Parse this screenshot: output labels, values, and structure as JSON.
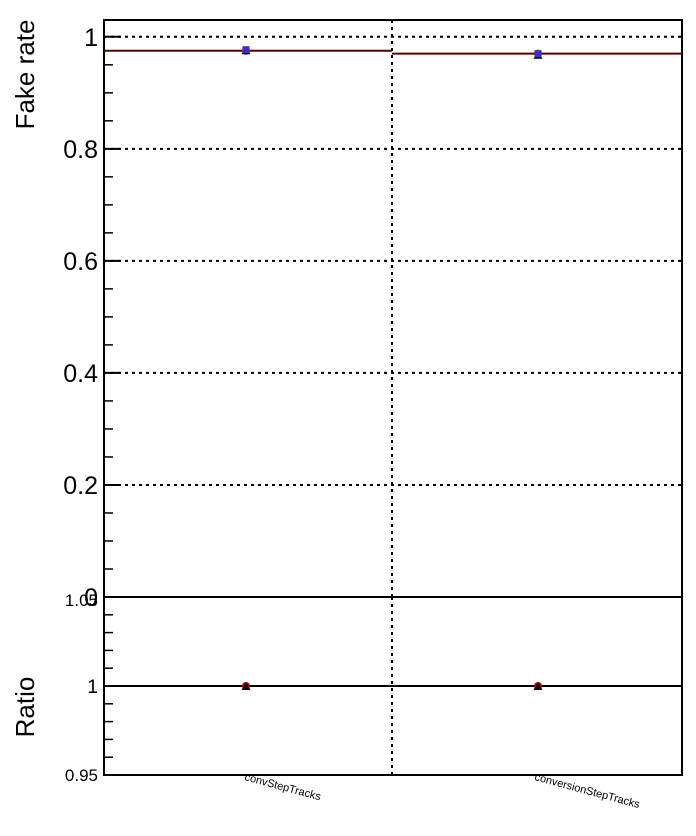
{
  "chart_data": [
    {
      "type": "scatter",
      "panel": "main",
      "ylabel": "Fake rate",
      "xlabel": "",
      "categories": [
        "convStepTracks",
        "conversionStepTracks"
      ],
      "ylim": [
        0,
        1.03
      ],
      "yticks": [
        0,
        0.2,
        0.4,
        0.6,
        0.8,
        1
      ],
      "ytick_labels": [
        "0",
        "0.2",
        "0.4",
        "0.6",
        "0.8",
        "1"
      ],
      "grid": true,
      "series": [
        {
          "values": [
            0.975,
            0.97
          ],
          "color": "#cc0000",
          "marker": "circle"
        },
        {
          "values": [
            0.976,
            0.968
          ],
          "color": "#000000",
          "marker": "triangle"
        },
        {
          "values": [
            0.977,
            0.97
          ],
          "color": "#3333cc",
          "marker": "square"
        }
      ],
      "reference_line": {
        "values": [
          0.975,
          0.97
        ],
        "color": "#550000"
      }
    },
    {
      "type": "scatter",
      "panel": "ratio",
      "ylabel": "Ratio",
      "xlabel": "",
      "categories": [
        "convStepTracks",
        "conversionStepTracks"
      ],
      "ylim": [
        0.95,
        1.05
      ],
      "yticks": [
        0.95,
        1,
        1.05
      ],
      "ytick_labels": [
        "0.95",
        "1",
        "1.05"
      ],
      "grid": true,
      "series": [
        {
          "values": [
            1.0,
            1.0
          ],
          "color": "#cc0000",
          "marker": "circle"
        },
        {
          "values": [
            1.0,
            1.0
          ],
          "color": "#000000",
          "marker": "triangle"
        }
      ],
      "reference_line": {
        "values": [
          1.0,
          1.0
        ],
        "color": "#000000"
      }
    }
  ]
}
